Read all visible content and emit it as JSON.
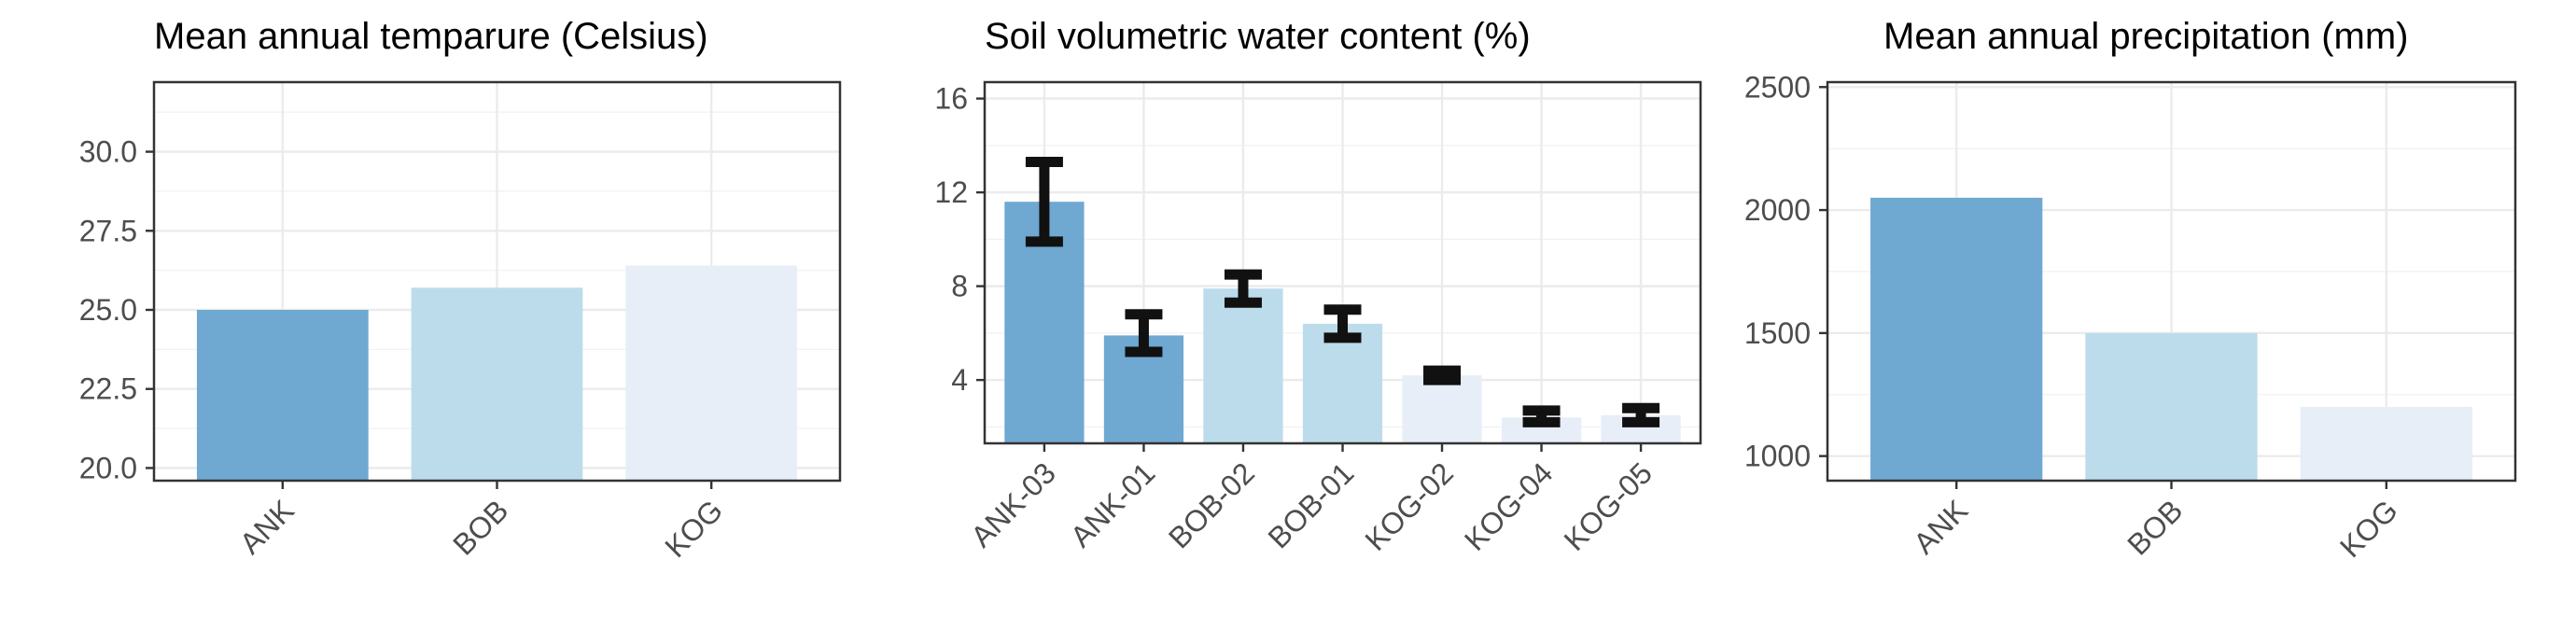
{
  "chart_data": [
    {
      "type": "bar",
      "title": "Mean annual temparure (Celsius)",
      "categories": [
        "ANK",
        "BOB",
        "KOG"
      ],
      "values": [
        25.0,
        25.7,
        26.4
      ],
      "colors": [
        "#6fa8d1",
        "#bcdceb",
        "#e7eef8"
      ],
      "ylim": [
        19.6,
        32.2
      ],
      "yticks": [
        20.0,
        22.5,
        25.0,
        27.5,
        30.0
      ],
      "ytick_labels": [
        "20.0",
        "22.5",
        "25.0",
        "27.5",
        "30.0"
      ],
      "xlabel": "",
      "ylabel": "",
      "grid": true
    },
    {
      "type": "bar",
      "title": "Soil volumetric water content (%)",
      "categories": [
        "ANK-03",
        "ANK-01",
        "BOB-02",
        "BOB-01",
        "KOG-02",
        "KOG-04",
        "KOG-05"
      ],
      "values": [
        11.6,
        5.9,
        7.9,
        6.4,
        4.2,
        2.4,
        2.5
      ],
      "error_low": [
        9.9,
        5.2,
        7.3,
        5.8,
        4.0,
        2.2,
        2.2
      ],
      "error_high": [
        13.3,
        6.8,
        8.5,
        7.0,
        4.4,
        2.7,
        2.8
      ],
      "colors": [
        "#6fa8d1",
        "#6fa8d1",
        "#bcdceb",
        "#bcdceb",
        "#e7eef8",
        "#e7eef8",
        "#e7eef8"
      ],
      "ylim": [
        1.3,
        16.7
      ],
      "yticks": [
        4,
        8,
        12,
        16
      ],
      "ytick_labels": [
        "4",
        "8",
        "12",
        "16"
      ],
      "xlabel": "",
      "ylabel": "",
      "grid": true
    },
    {
      "type": "bar",
      "title": "Mean annual precipitation (mm)",
      "categories": [
        "ANK",
        "BOB",
        "KOG"
      ],
      "values": [
        2050,
        1500,
        1200
      ],
      "colors": [
        "#6fa8d1",
        "#bcdceb",
        "#e7eef8"
      ],
      "ylim": [
        900,
        2520
      ],
      "yticks": [
        1000,
        1500,
        2000,
        2500
      ],
      "ytick_labels": [
        "1000",
        "1500",
        "2000",
        "2500"
      ],
      "xlabel": "",
      "ylabel": "",
      "grid": true
    }
  ]
}
